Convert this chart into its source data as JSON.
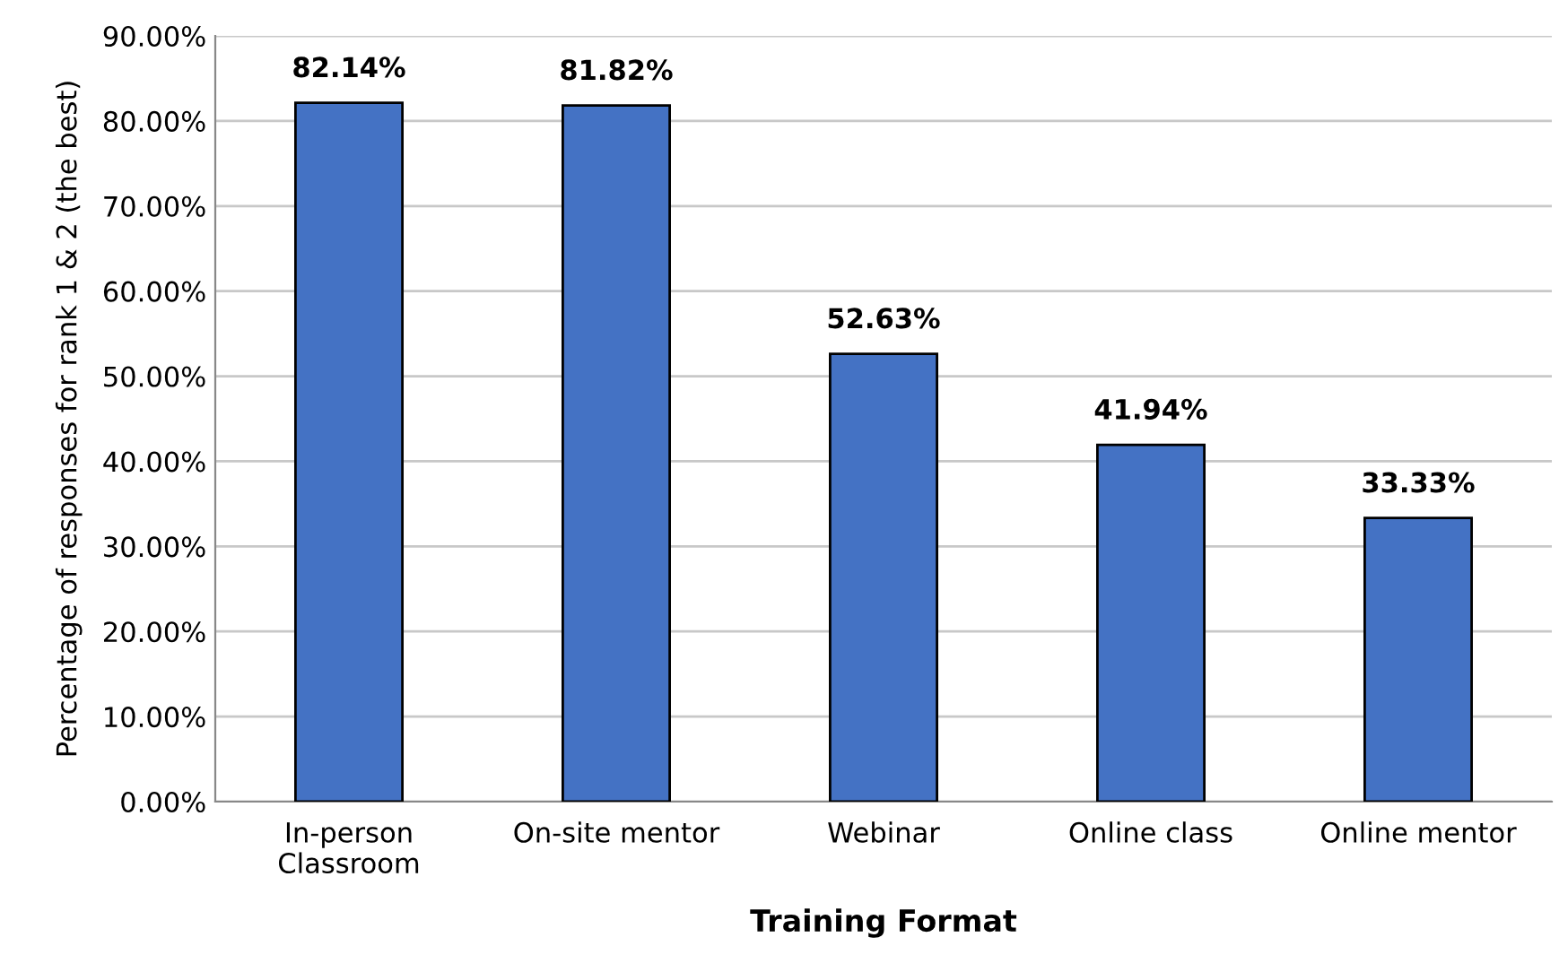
{
  "chart_data": {
    "type": "bar",
    "xlabel": "Training Format",
    "ylabel": "Percentage of responses for rank 1 & 2 (the best)",
    "categories": [
      "In-person\nClassroom",
      "On-site mentor",
      "Webinar",
      "Online class",
      "Online mentor"
    ],
    "values": [
      82.14,
      81.82,
      52.63,
      41.94,
      33.33
    ],
    "value_labels": [
      "82.14%",
      "81.82%",
      "52.63%",
      "41.94%",
      "33.33%"
    ],
    "color": "#4472c4",
    "ylim": [
      0,
      90
    ],
    "yticks": [
      {
        "value": 0,
        "label": "0.00%"
      },
      {
        "value": 10,
        "label": "10.00%"
      },
      {
        "value": 20,
        "label": "20.00%"
      },
      {
        "value": 30,
        "label": "30.00%"
      },
      {
        "value": 40,
        "label": "40.00%"
      },
      {
        "value": 50,
        "label": "50.00%"
      },
      {
        "value": 60,
        "label": "60.00%"
      },
      {
        "value": 70,
        "label": "70.00%"
      },
      {
        "value": 80,
        "label": "80.00%"
      },
      {
        "value": 90,
        "label": "90.00%"
      }
    ],
    "grid": "y"
  }
}
